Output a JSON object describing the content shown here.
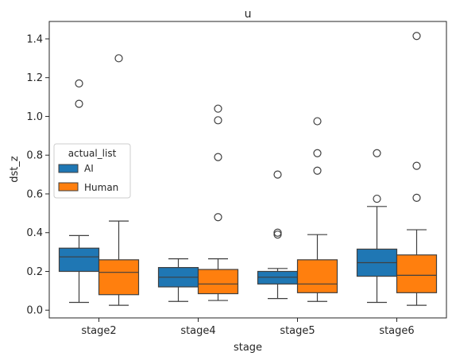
{
  "chart_data": {
    "type": "box",
    "title": "u",
    "xlabel": "stage",
    "ylabel": "dst_z",
    "categories": [
      "stage2",
      "stage4",
      "stage5",
      "stage6"
    ],
    "ylim": [
      -0.04,
      1.49
    ],
    "yticks": [
      0.0,
      0.2,
      0.4,
      0.6,
      0.8,
      1.0,
      1.2,
      1.4
    ],
    "ytick_labels": [
      "0.0",
      "0.2",
      "0.4",
      "0.6",
      "0.8",
      "1.0",
      "1.2",
      "1.4"
    ],
    "grid": false,
    "legend": {
      "title": "actual_list",
      "position": "center-left"
    },
    "colors": {
      "AI": "#1f77b4",
      "Human": "#ff7f0e",
      "edge": "#3f3f3f"
    },
    "series": [
      {
        "name": "AI",
        "boxes": [
          {
            "whislo": 0.04,
            "q1": 0.2,
            "med": 0.275,
            "q3": 0.32,
            "whishi": 0.385,
            "fliers": [
              1.065,
              1.17
            ]
          },
          {
            "whislo": 0.045,
            "q1": 0.12,
            "med": 0.17,
            "q3": 0.22,
            "whishi": 0.265,
            "fliers": []
          },
          {
            "whislo": 0.06,
            "q1": 0.135,
            "med": 0.17,
            "q3": 0.2,
            "whishi": 0.215,
            "fliers": [
              0.39,
              0.4,
              0.7
            ]
          },
          {
            "whislo": 0.04,
            "q1": 0.175,
            "med": 0.245,
            "q3": 0.315,
            "whishi": 0.535,
            "fliers": [
              0.575,
              0.81
            ]
          }
        ]
      },
      {
        "name": "Human",
        "boxes": [
          {
            "whislo": 0.025,
            "q1": 0.08,
            "med": 0.195,
            "q3": 0.26,
            "whishi": 0.46,
            "fliers": [
              1.3
            ]
          },
          {
            "whislo": 0.05,
            "q1": 0.085,
            "med": 0.135,
            "q3": 0.21,
            "whishi": 0.265,
            "fliers": [
              0.48,
              0.79,
              0.98,
              1.04
            ]
          },
          {
            "whislo": 0.045,
            "q1": 0.09,
            "med": 0.135,
            "q3": 0.26,
            "whishi": 0.39,
            "fliers": [
              0.72,
              0.81,
              0.975
            ]
          },
          {
            "whislo": 0.025,
            "q1": 0.09,
            "med": 0.18,
            "q3": 0.285,
            "whishi": 0.415,
            "fliers": [
              0.58,
              0.745,
              1.415
            ]
          }
        ]
      }
    ]
  }
}
